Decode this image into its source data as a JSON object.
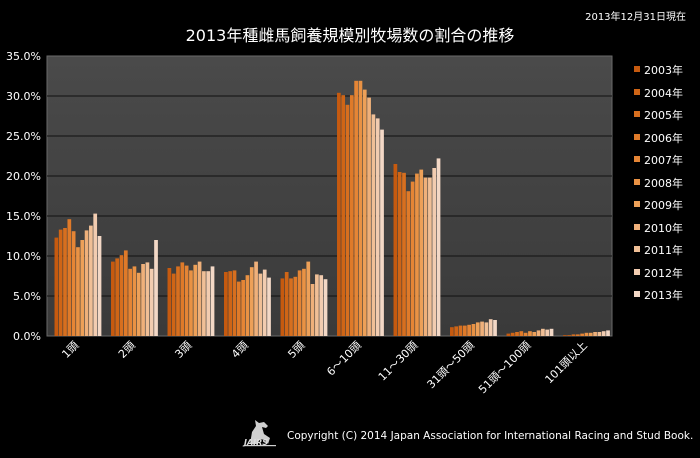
{
  "header": {
    "title": "2013年種雌馬飼養規模別牧場数の割合の推移",
    "date_note": "2013年12月31日現在"
  },
  "footer": {
    "copyright": "Copyright (C) 2014 Japan Association for International Racing and Stud Book.",
    "logo_text": "JAIRS"
  },
  "chart_data": {
    "type": "bar",
    "title": "2013年種雌馬飼養規模別牧場数の割合の推移",
    "xlabel": "",
    "ylabel": "",
    "ylim": [
      0,
      35
    ],
    "yticks": [
      "0.0%",
      "5.0%",
      "10.0%",
      "15.0%",
      "20.0%",
      "25.0%",
      "30.0%",
      "35.0%"
    ],
    "grid": true,
    "legend_position": "right",
    "categories": [
      "1頭",
      "2頭",
      "3頭",
      "4頭",
      "5頭",
      "6～10頭",
      "11～30頭",
      "31頭～50頭",
      "51頭～100頭",
      "101頭以上"
    ],
    "colors": [
      "#c65a0f",
      "#cf6516",
      "#d76f1f",
      "#df7a29",
      "#e58535",
      "#e99244",
      "#eda058",
      "#efb07a",
      "#f0bf96",
      "#f2ccb0",
      "#f3d8c6"
    ],
    "series": [
      {
        "name": "2003年",
        "values": [
          12.3,
          9.3,
          8.5,
          8.0,
          7.2,
          30.4,
          21.5,
          1.1,
          0.3,
          0.1
        ]
      },
      {
        "name": "2004年",
        "values": [
          13.3,
          9.7,
          7.8,
          8.1,
          8.0,
          30.1,
          20.5,
          1.2,
          0.4,
          0.1
        ]
      },
      {
        "name": "2005年",
        "values": [
          13.5,
          10.1,
          8.7,
          8.2,
          7.2,
          28.9,
          20.4,
          1.3,
          0.5,
          0.2
        ]
      },
      {
        "name": "2006年",
        "values": [
          14.6,
          10.7,
          9.2,
          6.8,
          7.4,
          30.1,
          18.1,
          1.3,
          0.6,
          0.2
        ]
      },
      {
        "name": "2007年",
        "values": [
          13.1,
          8.4,
          8.8,
          7.0,
          8.2,
          31.9,
          19.3,
          1.4,
          0.4,
          0.3
        ]
      },
      {
        "name": "2008年",
        "values": [
          11.1,
          8.7,
          8.2,
          7.6,
          8.4,
          31.9,
          20.3,
          1.5,
          0.6,
          0.4
        ]
      },
      {
        "name": "2009年",
        "values": [
          12.0,
          7.9,
          8.9,
          8.6,
          9.3,
          30.8,
          20.8,
          1.7,
          0.5,
          0.4
        ]
      },
      {
        "name": "2010年",
        "values": [
          13.2,
          9.0,
          9.3,
          9.3,
          6.5,
          29.8,
          19.8,
          1.8,
          0.7,
          0.5
        ]
      },
      {
        "name": "2011年",
        "values": [
          13.8,
          9.2,
          8.1,
          7.8,
          7.7,
          27.7,
          19.8,
          1.7,
          0.9,
          0.5
        ]
      },
      {
        "name": "2012年",
        "values": [
          15.3,
          8.4,
          8.1,
          8.3,
          7.6,
          27.2,
          21.0,
          2.1,
          0.8,
          0.6
        ]
      },
      {
        "name": "2013年",
        "values": [
          12.5,
          12.0,
          8.7,
          7.3,
          7.1,
          25.8,
          22.2,
          2.0,
          0.9,
          0.7
        ]
      }
    ]
  }
}
